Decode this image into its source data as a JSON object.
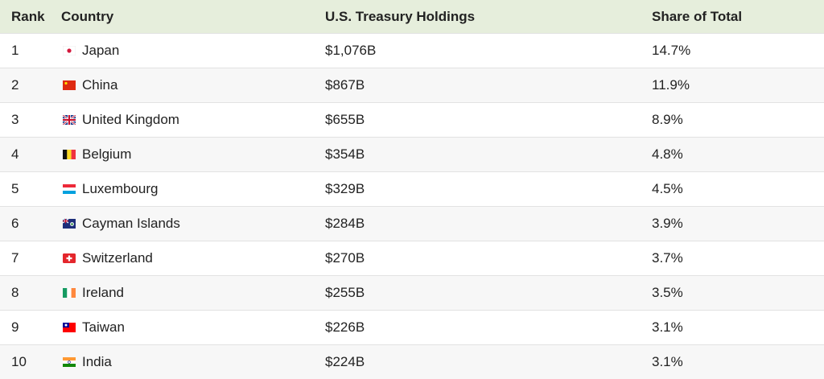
{
  "table": {
    "header": [
      "Rank",
      "Country",
      "U.S. Treasury Holdings",
      "Share of Total"
    ],
    "rows": [
      [
        "1",
        "Japan",
        "$1,076B",
        "14.7%"
      ],
      [
        "2",
        "China",
        "$867B",
        "11.9%"
      ],
      [
        "3",
        "United Kingdom",
        "$655B",
        "8.9%"
      ],
      [
        "4",
        "Belgium",
        "$354B",
        "4.8%"
      ],
      [
        "5",
        "Luxembourg",
        "$329B",
        "4.5%"
      ],
      [
        "6",
        "Cayman Islands",
        "$284B",
        "3.9%"
      ],
      [
        "7",
        "Switzerland",
        "$270B",
        "3.7%"
      ],
      [
        "8",
        "Ireland",
        "$255B",
        "3.5%"
      ],
      [
        "9",
        "Taiwan",
        "$226B",
        "3.1%"
      ],
      [
        "10",
        "India",
        "$224B",
        "3.1%"
      ]
    ]
  }
}
